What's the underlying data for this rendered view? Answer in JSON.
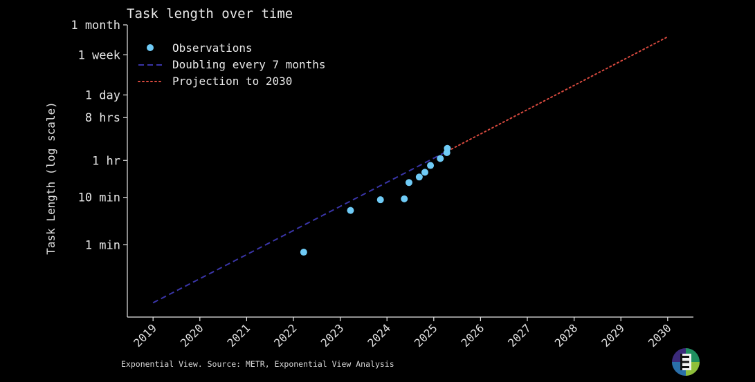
{
  "chart_data": {
    "type": "scatter",
    "title": "Task length over time",
    "xlabel": "",
    "ylabel": "Task Length (log scale)",
    "y_scale": "log",
    "x_ticks": [
      "2019",
      "2020",
      "2021",
      "2022",
      "2023",
      "2024",
      "2025",
      "2026",
      "2027",
      "2028",
      "2029",
      "2030"
    ],
    "y_ticks": [
      {
        "label": "1 min",
        "minutes": 1
      },
      {
        "label": "10 min",
        "minutes": 10
      },
      {
        "label": "1 hr",
        "minutes": 60
      },
      {
        "label": "8 hrs",
        "minutes": 480
      },
      {
        "label": "1 day",
        "minutes": 1440
      },
      {
        "label": "1 week",
        "minutes": 10080
      },
      {
        "label": "1 month",
        "minutes": 43200
      }
    ],
    "xlim": [
      2018.45,
      2030.55
    ],
    "ylim_minutes": [
      0.03,
      43200
    ],
    "legend_position": "upper-left",
    "series": [
      {
        "name": "Observations",
        "kind": "scatter",
        "color": "#6fcbf6",
        "points": [
          {
            "x": 2022.22,
            "y": 0.7
          },
          {
            "x": 2023.22,
            "y": 5.3
          },
          {
            "x": 2023.86,
            "y": 8.9
          },
          {
            "x": 2024.37,
            "y": 9.3
          },
          {
            "x": 2024.47,
            "y": 20.5
          },
          {
            "x": 2024.69,
            "y": 26.8
          },
          {
            "x": 2024.81,
            "y": 33.8
          },
          {
            "x": 2024.93,
            "y": 47.0
          },
          {
            "x": 2025.14,
            "y": 65.8
          },
          {
            "x": 2025.28,
            "y": 87.5
          },
          {
            "x": 2025.29,
            "y": 108.0
          }
        ]
      },
      {
        "name": "Doubling every 7 months",
        "kind": "line",
        "style": "dashed",
        "color": "#3a35a8",
        "points": [
          {
            "x": 2019.0,
            "y": 0.06
          },
          {
            "x": 2025.3,
            "y": 95.0
          }
        ]
      },
      {
        "name": "Projection to 2030",
        "kind": "line",
        "style": "dotted",
        "color": "#d94a3f",
        "points": [
          {
            "x": 2025.3,
            "y": 95.0
          },
          {
            "x": 2030.0,
            "y": 24200.0
          }
        ]
      }
    ]
  },
  "footer": {
    "source": "Exponential View. Source: METR, Exponential View Analysis"
  },
  "logo": {
    "icon": "exponential-view-logo-icon",
    "colors": [
      "#3b2a7a",
      "#1f8f5f",
      "#8fbf3a",
      "#2a6fa8"
    ]
  }
}
